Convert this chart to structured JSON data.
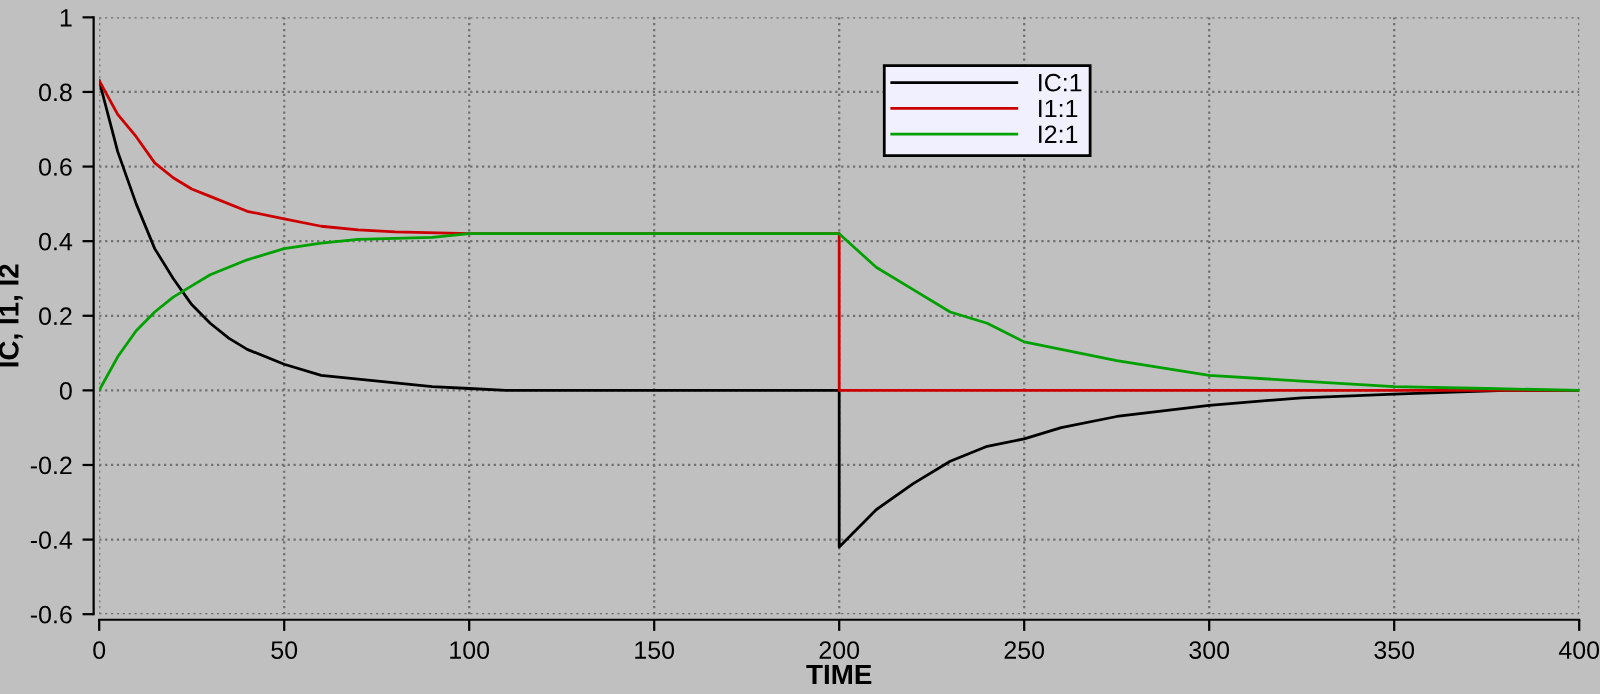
{
  "chart_data": {
    "type": "line",
    "xlabel": "TIME",
    "ylabel": "IC, I1, I2",
    "xlim": [
      0,
      400
    ],
    "ylim": [
      -0.6,
      1
    ],
    "xticks": [
      0,
      50,
      100,
      150,
      200,
      250,
      300,
      350,
      400
    ],
    "yticks": [
      -0.6,
      -0.4,
      -0.2,
      0,
      0.2,
      0.4,
      0.6,
      0.8,
      1
    ],
    "grid": true,
    "legend": "top",
    "line_style": "solid",
    "marker": "none",
    "series": [
      {
        "name": "IC:1",
        "color": "#000000",
        "x": [
          0,
          5,
          10,
          15,
          20,
          25,
          30,
          35,
          40,
          50,
          60,
          70,
          80,
          90,
          100,
          110,
          200,
          200,
          210,
          220,
          230,
          240,
          250,
          260,
          275,
          300,
          325,
          350,
          380,
          400
        ],
        "values": [
          0.83,
          0.64,
          0.5,
          0.38,
          0.3,
          0.23,
          0.18,
          0.14,
          0.11,
          0.07,
          0.04,
          0.03,
          0.02,
          0.01,
          0.005,
          0,
          0,
          -0.42,
          -0.32,
          -0.25,
          -0.19,
          -0.15,
          -0.13,
          -0.1,
          -0.07,
          -0.04,
          -0.02,
          -0.01,
          0,
          0
        ]
      },
      {
        "name": "I1:1",
        "color": "#cc0000",
        "x": [
          0,
          5,
          10,
          15,
          20,
          25,
          30,
          40,
          50,
          60,
          70,
          80,
          100,
          165,
          200,
          200,
          390,
          400
        ],
        "values": [
          0.83,
          0.74,
          0.68,
          0.61,
          0.57,
          0.54,
          0.52,
          0.48,
          0.46,
          0.44,
          0.43,
          0.425,
          0.42,
          0.42,
          0.42,
          0,
          0,
          0
        ]
      },
      {
        "name": "I2:1",
        "color": "#00a000",
        "x": [
          0,
          5,
          10,
          15,
          20,
          25,
          30,
          35,
          40,
          50,
          60,
          70,
          90,
          100,
          200,
          210,
          220,
          230,
          240,
          250,
          260,
          275,
          300,
          325,
          350,
          375,
          400
        ],
        "values": [
          0,
          0.09,
          0.16,
          0.21,
          0.25,
          0.28,
          0.31,
          0.33,
          0.35,
          0.38,
          0.395,
          0.405,
          0.41,
          0.42,
          0.42,
          0.33,
          0.27,
          0.21,
          0.18,
          0.13,
          0.11,
          0.08,
          0.04,
          0.025,
          0.01,
          0.005,
          0
        ]
      }
    ]
  }
}
